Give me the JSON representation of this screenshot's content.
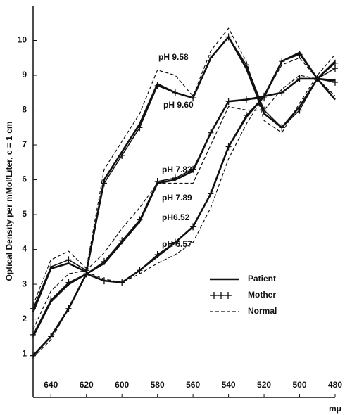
{
  "chart_data": {
    "type": "line",
    "xlabel": "mμ",
    "ylabel": "Optical Density per mMol/Liter, c = 1 cm",
    "x": [
      650,
      640,
      630,
      620,
      610,
      600,
      590,
      580,
      570,
      560,
      550,
      540,
      530,
      520,
      510,
      500,
      490,
      480
    ],
    "xlim": [
      650,
      480
    ],
    "xticks": [
      640,
      620,
      600,
      580,
      560,
      540,
      520,
      500,
      480
    ],
    "ylim": [
      -0.25,
      11
    ],
    "yticks": [
      1,
      2,
      3,
      4,
      5,
      6,
      7,
      8,
      9,
      10
    ],
    "annotations": [
      "pH 9.58",
      "pH 9.60",
      "pH 7.83",
      "pH 7.89",
      "pH6.52",
      "pH 6.57"
    ],
    "series": [
      {
        "name": "Patient",
        "color": "#111111",
        "style": "solid",
        "values": [
          2.2,
          3.45,
          3.6,
          3.35,
          6.0,
          6.8,
          7.6,
          8.75,
          8.5,
          8.35,
          9.5,
          10.1,
          9.2,
          7.9,
          7.5,
          8.1,
          8.9,
          9.4
        ]
      },
      {
        "name": "Mother",
        "color": "#111111",
        "style": "solid",
        "marker": "plus",
        "values": [
          2.3,
          3.5,
          3.7,
          3.4,
          5.9,
          6.7,
          7.5,
          8.7,
          8.5,
          8.35,
          9.5,
          10.1,
          9.3,
          8.0,
          7.5,
          8.0,
          8.9,
          9.35
        ]
      },
      {
        "name": "Normal",
        "color": "#111111",
        "style": "dashed",
        "values": [
          2.4,
          3.7,
          3.95,
          3.45,
          6.3,
          7.1,
          7.9,
          9.15,
          9.0,
          8.4,
          9.7,
          10.35,
          9.4,
          7.7,
          7.35,
          8.2,
          9.0,
          9.6
        ]
      },
      {
        "name": "Patient",
        "color": "#111111",
        "style": "solid",
        "values": [
          1.5,
          2.5,
          3.0,
          3.3,
          3.6,
          4.2,
          4.8,
          5.9,
          6.0,
          6.25,
          7.35,
          8.25,
          8.3,
          8.4,
          8.5,
          8.9,
          8.9,
          8.85
        ]
      },
      {
        "name": "Mother",
        "color": "#111111",
        "style": "solid",
        "marker": "plus",
        "values": [
          1.55,
          2.55,
          3.05,
          3.3,
          3.65,
          4.25,
          4.85,
          5.95,
          6.05,
          6.3,
          7.35,
          8.25,
          8.3,
          8.35,
          9.4,
          9.6,
          8.9,
          8.8
        ]
      },
      {
        "name": "Normal",
        "color": "#111111",
        "style": "dashed",
        "values": [
          1.7,
          2.8,
          3.3,
          3.4,
          3.9,
          4.6,
          5.2,
          5.9,
          5.9,
          5.9,
          7.0,
          8.1,
          8.0,
          8.0,
          8.6,
          9.0,
          8.9,
          8.4
        ]
      },
      {
        "name": "Patient",
        "color": "#111111",
        "style": "solid",
        "values": [
          0.95,
          1.5,
          2.3,
          3.3,
          3.1,
          3.05,
          3.4,
          3.8,
          4.2,
          4.65,
          5.6,
          6.95,
          7.8,
          8.4,
          9.4,
          9.65,
          8.9,
          8.3
        ]
      },
      {
        "name": "Mother",
        "color": "#111111",
        "style": "solid",
        "marker": "plus",
        "values": [
          0.95,
          1.5,
          2.3,
          3.3,
          3.1,
          3.05,
          3.4,
          3.85,
          4.2,
          4.65,
          5.6,
          6.95,
          7.85,
          8.4,
          8.5,
          8.9,
          8.9,
          9.2
        ]
      },
      {
        "name": "Normal",
        "color": "#111111",
        "style": "dashed",
        "values": [
          0.9,
          1.4,
          2.3,
          3.35,
          3.15,
          3.05,
          3.3,
          3.6,
          3.85,
          4.2,
          5.2,
          6.6,
          7.6,
          8.4,
          9.3,
          9.5,
          8.9,
          8.4
        ]
      }
    ]
  }
}
